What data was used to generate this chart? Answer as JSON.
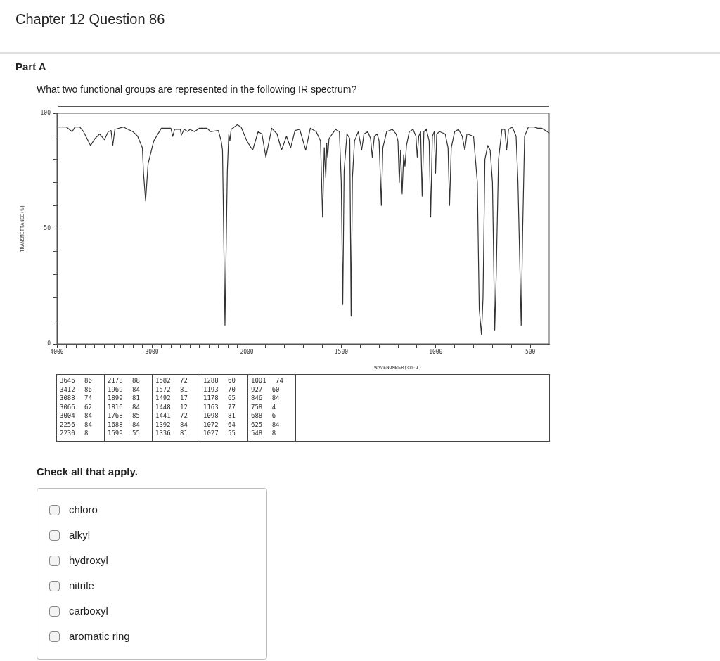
{
  "chart_data": [
    {
      "type": "line",
      "title": "Chapter 12 Question 86",
      "subtitle": "What two functional groups are represented in the following IR spectrum?",
      "ylabel": "TRANSMITTANCE(%)",
      "xlim": [
        4000,
        2000
      ],
      "ylim": [
        0,
        100
      ],
      "xticks": [
        4000,
        {
          "value": 3900,
          "label": null
        },
        {
          "value": 3800,
          "label": null
        },
        {
          "value": 3700,
          "label": null
        },
        {
          "value": 3600,
          "label": null
        },
        {
          "value": 3500,
          "label": null
        },
        {
          "value": 3400,
          "label": null
        },
        {
          "value": 3300,
          "label": null
        },
        {
          "value": 3200,
          "label": null
        },
        {
          "value": 3100,
          "label": null
        },
        3000,
        {
          "value": 2900,
          "label": null
        },
        {
          "value": 2800,
          "label": null
        },
        {
          "value": 2700,
          "label": null
        },
        {
          "value": 2600,
          "label": null
        },
        {
          "value": 2500,
          "label": null
        },
        {
          "value": 2400,
          "label": null
        },
        {
          "value": 2300,
          "label": null
        },
        {
          "value": 2200,
          "label": null
        },
        {
          "value": 2100,
          "label": null
        }
      ],
      "yticks": [
        0,
        {
          "value": 10,
          "label": null
        },
        {
          "value": 20,
          "label": null
        },
        {
          "value": 30,
          "label": null
        },
        {
          "value": 40,
          "label": null
        },
        50,
        {
          "value": 60,
          "label": null
        },
        {
          "value": 70,
          "label": null
        },
        {
          "value": 80,
          "label": null
        },
        {
          "value": 90,
          "label": null
        },
        100
      ],
      "grid": false,
      "marker": "none",
      "line_style": "solid",
      "series": [
        {
          "color": "#333333",
          "x": [
            4000,
            3900,
            3840,
            3810,
            3760,
            3720,
            3646,
            3600,
            3550,
            3500,
            3460,
            3430,
            3412,
            3390,
            3300,
            3200,
            3150,
            3100,
            3088,
            3066,
            3040,
            3004,
            2980,
            2900,
            2800,
            2780,
            2760,
            2700,
            2690,
            2660,
            2620,
            2600,
            2550,
            2500,
            2420,
            2380,
            2300,
            2270,
            2256,
            2230,
            2205,
            2190,
            2178,
            2165,
            2100,
            2060,
            2020,
            2000
          ],
          "values": [
            94,
            94,
            92,
            94,
            94,
            92,
            86,
            89,
            91,
            88.5,
            92,
            92.5,
            86,
            93,
            94,
            92,
            90,
            85,
            74,
            62,
            78,
            84,
            88,
            93.5,
            93.5,
            90,
            93,
            93,
            90.5,
            93,
            92,
            93,
            92,
            93.5,
            93.5,
            92,
            92.5,
            88,
            84,
            8,
            75,
            91,
            88,
            93,
            95,
            94,
            90,
            88
          ]
        }
      ],
      "annotations": [
        "Part A",
        "Check all that apply.",
        "chloro",
        "alkyl",
        "hydroxyl",
        "nitrile",
        "carboxyl",
        "aromatic ring"
      ]
    },
    {
      "type": "line",
      "xlabel": "WAVENUMBER(cm-1)",
      "xlim": [
        2000,
        400
      ],
      "ylim": [
        0,
        100
      ],
      "tick_labels": "x",
      "xticks": [
        2000,
        {
          "value": 1900,
          "label": null
        },
        {
          "value": 1800,
          "label": null
        },
        {
          "value": 1700,
          "label": null
        },
        {
          "value": 1600,
          "label": null
        },
        1500,
        {
          "value": 1400,
          "label": null
        },
        {
          "value": 1300,
          "label": null
        },
        {
          "value": 1200,
          "label": null
        },
        {
          "value": 1100,
          "label": null
        },
        1000,
        {
          "value": 900,
          "label": null
        },
        {
          "value": 800,
          "label": null
        },
        {
          "value": 700,
          "label": null
        },
        {
          "value": 600,
          "label": null
        },
        500
      ],
      "grid": false,
      "marker": "none",
      "line_style": "solid",
      "series": [
        {
          "color": "#333333",
          "x": [
            2000,
            1969,
            1940,
            1920,
            1899,
            1868,
            1840,
            1816,
            1790,
            1768,
            1745,
            1720,
            1688,
            1664,
            1633,
            1610,
            1599,
            1590,
            1582,
            1577,
            1572,
            1565,
            1530,
            1510,
            1500,
            1492,
            1485,
            1470,
            1455,
            1448,
            1441,
            1430,
            1410,
            1392,
            1380,
            1360,
            1345,
            1336,
            1325,
            1310,
            1300,
            1288,
            1280,
            1260,
            1230,
            1210,
            1200,
            1193,
            1186,
            1178,
            1170,
            1163,
            1155,
            1140,
            1120,
            1105,
            1098,
            1090,
            1080,
            1072,
            1063,
            1050,
            1035,
            1027,
            1018,
            1008,
            1001,
            995,
            980,
            950,
            935,
            927,
            918,
            900,
            880,
            860,
            846,
            835,
            800,
            780,
            770,
            758,
            750,
            740,
            725,
            712,
            700,
            688,
            680,
            668,
            650,
            635,
            625,
            615,
            595,
            575,
            565,
            548,
            540,
            530,
            510,
            480,
            460,
            440,
            400
          ],
          "values": [
            88,
            84,
            92,
            91,
            81,
            93.5,
            91,
            84,
            90,
            85,
            92.5,
            93,
            84,
            93.5,
            92,
            88,
            55,
            85,
            72,
            87,
            81,
            89,
            93,
            92,
            70,
            17,
            75,
            91,
            89,
            12,
            72,
            88,
            92,
            84,
            91,
            92,
            89,
            81,
            90,
            91,
            88,
            60,
            85,
            92,
            93,
            91,
            88,
            70,
            84,
            65,
            82,
            77,
            86,
            92,
            93,
            90,
            81,
            90,
            92,
            64,
            92,
            93,
            88,
            55,
            90,
            92,
            74,
            91,
            92,
            91,
            85,
            60,
            85,
            92,
            93,
            90,
            84,
            91,
            90,
            70,
            15,
            4,
            20,
            80,
            86,
            84,
            70,
            6,
            30,
            80,
            93,
            93,
            84,
            93,
            94,
            90,
            70,
            8,
            50,
            90,
            94,
            94,
            93.5,
            93.5,
            91.5
          ]
        }
      ],
      "annotations": [
        "3646 86",
        "3412 86",
        "3088 74",
        "3066 62",
        "3004 84",
        "2256 84",
        "2230 8",
        "2178 88",
        "1969 84",
        "1899 81",
        "1816 84",
        "1768 85",
        "1688 84",
        "1599 55",
        "1582 72",
        "1572 81",
        "1492 17",
        "1448 12",
        "1441 72",
        "1392 84",
        "1336 81",
        "1288 60",
        "1193 70",
        "1178 65",
        "1163 77",
        "1098 81",
        "1072 64",
        "1027 55",
        "1001 74",
        "927 60",
        "846 84",
        "758 4",
        "688 6",
        "625 84",
        "548 8"
      ]
    }
  ]
}
